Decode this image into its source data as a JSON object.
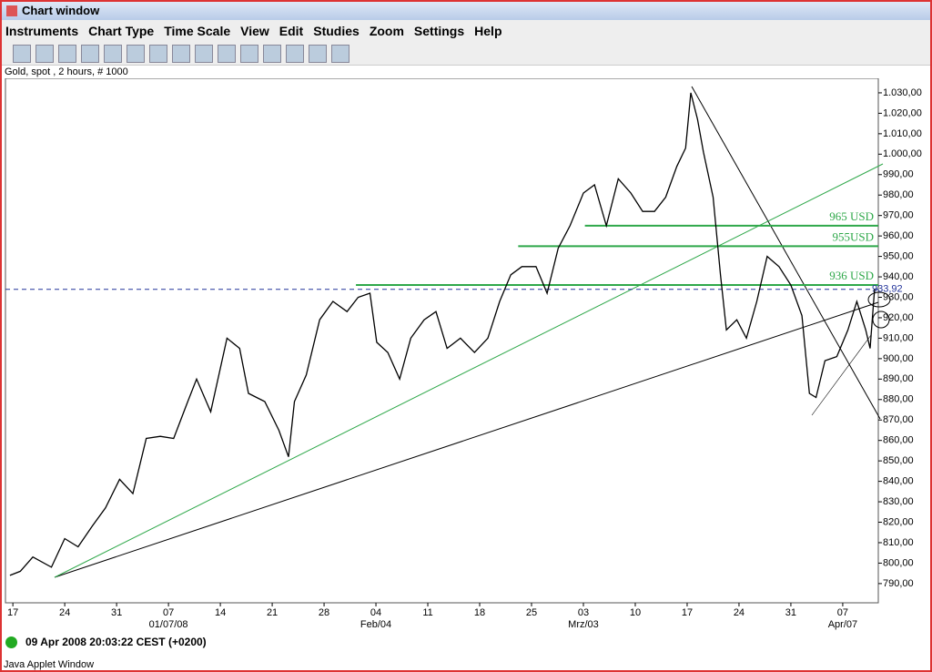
{
  "window": {
    "title": "Chart window",
    "menu": [
      "Instruments",
      "Chart Type",
      "Time Scale",
      "View",
      "Edit",
      "Studies",
      "Zoom",
      "Settings",
      "Help"
    ],
    "status": "09 Apr 2008 20:03:22 CEST (+0200)",
    "footer": "Java Applet Window"
  },
  "chart_data": {
    "type": "line",
    "subtitle": "Gold, spot , 2 hours, # 1000",
    "color": "#000000",
    "x": [
      -0.4,
      1,
      2.7,
      5.2,
      7,
      8.8,
      10.7,
      12.5,
      14.4,
      16.2,
      18,
      19.9,
      21.7,
      23.6,
      24.8,
      26.7,
      28.9,
      30.6,
      31.8,
      34,
      35.9,
      37.2,
      38,
      39.6,
      41.4,
      43.2,
      45.1,
      46.6,
      48.2,
      49.1,
      50.6,
      52.2,
      53.7,
      55.5,
      57.1,
      58.6,
      60.4,
      62.3,
      64.1,
      65.7,
      67.2,
      68.7,
      70.6,
      72.1,
      73.6,
      75.2,
      77,
      78.5,
      80.1,
      81.7,
      83.4,
      85,
      86.6,
      88.1,
      89.6,
      90.8,
      91.5,
      92.4,
      93.2,
      94.5,
      95.5,
      96.3,
      97.7,
      99,
      100.4,
      101.8,
      103.4,
      105,
      106.5,
      107.5,
      108.4,
      109.6,
      111.2,
      112.7,
      113.9,
      115.1,
      115.7,
      116.3
    ],
    "values": [
      794,
      796,
      803,
      798,
      812,
      808,
      818,
      827,
      841,
      834,
      861,
      862,
      861,
      879,
      890,
      874,
      910,
      905,
      883,
      879,
      865,
      852,
      879,
      892,
      919,
      928,
      923,
      930,
      932,
      908,
      903,
      890,
      910,
      919,
      923,
      905,
      910,
      903,
      910,
      928,
      941,
      945,
      945,
      932,
      954,
      965,
      981,
      985,
      965,
      988,
      981,
      972,
      972,
      979,
      994,
      1003,
      1030,
      1017,
      1001,
      979,
      941,
      914,
      919,
      910,
      928,
      950,
      945,
      936,
      921,
      883,
      881,
      899,
      901,
      914,
      928,
      914,
      905,
      934
    ],
    "xlim": [
      -1,
      116.8
    ],
    "xticks": [
      {
        "value": 0,
        "label": "17"
      },
      {
        "value": 7,
        "label": "24"
      },
      {
        "value": 14,
        "label": "31"
      },
      {
        "value": 21,
        "label": "07"
      },
      {
        "value": 28,
        "label": "14"
      },
      {
        "value": 35,
        "label": "21"
      },
      {
        "value": 42,
        "label": "28"
      },
      {
        "value": 49,
        "label": "04"
      },
      {
        "value": 56,
        "label": "11"
      },
      {
        "value": 63,
        "label": "18"
      },
      {
        "value": 70,
        "label": "25"
      },
      {
        "value": 77,
        "label": "03"
      },
      {
        "value": 84,
        "label": "10"
      },
      {
        "value": 91,
        "label": "17"
      },
      {
        "value": 98,
        "label": "24"
      },
      {
        "value": 105,
        "label": "31"
      },
      {
        "value": 112,
        "label": "07"
      }
    ],
    "xticks2": [
      {
        "value": 21,
        "label": "01/07/08"
      },
      {
        "value": 49,
        "label": "Feb/04"
      },
      {
        "value": 77,
        "label": "Mrz/03"
      },
      {
        "value": 112,
        "label": "Apr/07"
      }
    ],
    "ylim": [
      780.6,
      1037.1
    ],
    "yticks": [
      {
        "value": 790,
        "label": "790,00"
      },
      {
        "value": 800,
        "label": "800,00"
      },
      {
        "value": 810,
        "label": "810,00"
      },
      {
        "value": 820,
        "label": "820,00"
      },
      {
        "value": 830,
        "label": "830,00"
      },
      {
        "value": 840,
        "label": "840,00"
      },
      {
        "value": 850,
        "label": "850,00"
      },
      {
        "value": 860,
        "label": "860,00"
      },
      {
        "value": 870,
        "label": "870,00"
      },
      {
        "value": 880,
        "label": "880,00"
      },
      {
        "value": 890,
        "label": "890,00"
      },
      {
        "value": 900,
        "label": "900,00"
      },
      {
        "value": 910,
        "label": "910,00"
      },
      {
        "value": 920,
        "label": "920,00"
      },
      {
        "value": 930,
        "label": "930,00"
      },
      {
        "value": 940,
        "label": "940,00"
      },
      {
        "value": 950,
        "label": "950,00"
      },
      {
        "value": 960,
        "label": "960,00"
      },
      {
        "value": 970,
        "label": "970,00"
      },
      {
        "value": 980,
        "label": "980,00"
      },
      {
        "value": 990,
        "label": "990,00"
      },
      {
        "value": 1000,
        "label": "1.000,00"
      },
      {
        "value": 1010,
        "label": "1.010,00"
      },
      {
        "value": 1020,
        "label": "1.020,00"
      },
      {
        "value": 1030,
        "label": "1.030,00"
      }
    ],
    "annotations": [
      {
        "text": "965 USD",
        "value": 965,
        "start": 77.2
      },
      {
        "text": "955USD",
        "value": 955,
        "start": 68.2
      },
      {
        "text": "936 USD",
        "value": 936,
        "start": 46.3
      }
    ],
    "annotation_color": "#2fa84a",
    "last": {
      "value": 933.92,
      "label": "933,92"
    }
  }
}
